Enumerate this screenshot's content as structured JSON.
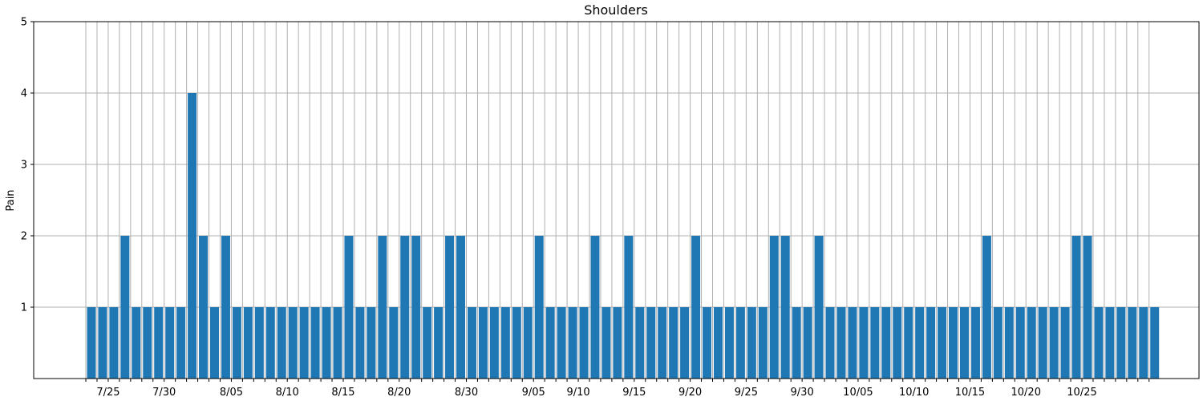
{
  "chart_data": {
    "type": "bar",
    "title": "Shoulders",
    "xlabel": "",
    "ylabel": "Pain",
    "ylim": [
      0,
      5
    ],
    "yticks": [
      1,
      2,
      3,
      4,
      5
    ],
    "grid": true,
    "color": "#1f77b4",
    "grid_color": "#b0b0b0",
    "x_tick_labels": [
      {
        "index": 2,
        "label": "7/25"
      },
      {
        "index": 7,
        "label": "7/30"
      },
      {
        "index": 13,
        "label": "8/05"
      },
      {
        "index": 18,
        "label": "8/10"
      },
      {
        "index": 23,
        "label": "8/15"
      },
      {
        "index": 28,
        "label": "8/20"
      },
      {
        "index": 34,
        "label": "8/30"
      },
      {
        "index": 40,
        "label": "9/05"
      },
      {
        "index": 44,
        "label": "9/10"
      },
      {
        "index": 49,
        "label": "9/15"
      },
      {
        "index": 54,
        "label": "9/20"
      },
      {
        "index": 59,
        "label": "9/25"
      },
      {
        "index": 64,
        "label": "9/30"
      },
      {
        "index": 69,
        "label": "10/05"
      },
      {
        "index": 74,
        "label": "10/10"
      },
      {
        "index": 79,
        "label": "10/15"
      },
      {
        "index": 84,
        "label": "10/20"
      },
      {
        "index": 89,
        "label": "10/25"
      }
    ],
    "values": [
      1,
      1,
      1,
      2,
      1,
      1,
      1,
      1,
      1,
      4,
      2,
      1,
      2,
      1,
      1,
      1,
      1,
      1,
      1,
      1,
      1,
      1,
      1,
      2,
      1,
      1,
      2,
      1,
      2,
      2,
      1,
      1,
      2,
      2,
      1,
      1,
      1,
      1,
      1,
      1,
      2,
      1,
      1,
      1,
      1,
      2,
      1,
      1,
      2,
      1,
      1,
      1,
      1,
      1,
      2,
      1,
      1,
      1,
      1,
      1,
      1,
      2,
      2,
      1,
      1,
      2,
      1,
      1,
      1,
      1,
      1,
      1,
      1,
      1,
      1,
      1,
      1,
      1,
      1,
      1,
      2,
      1,
      1,
      1,
      1,
      1,
      1,
      1,
      2,
      2,
      1,
      1,
      1,
      1,
      1,
      1
    ]
  }
}
